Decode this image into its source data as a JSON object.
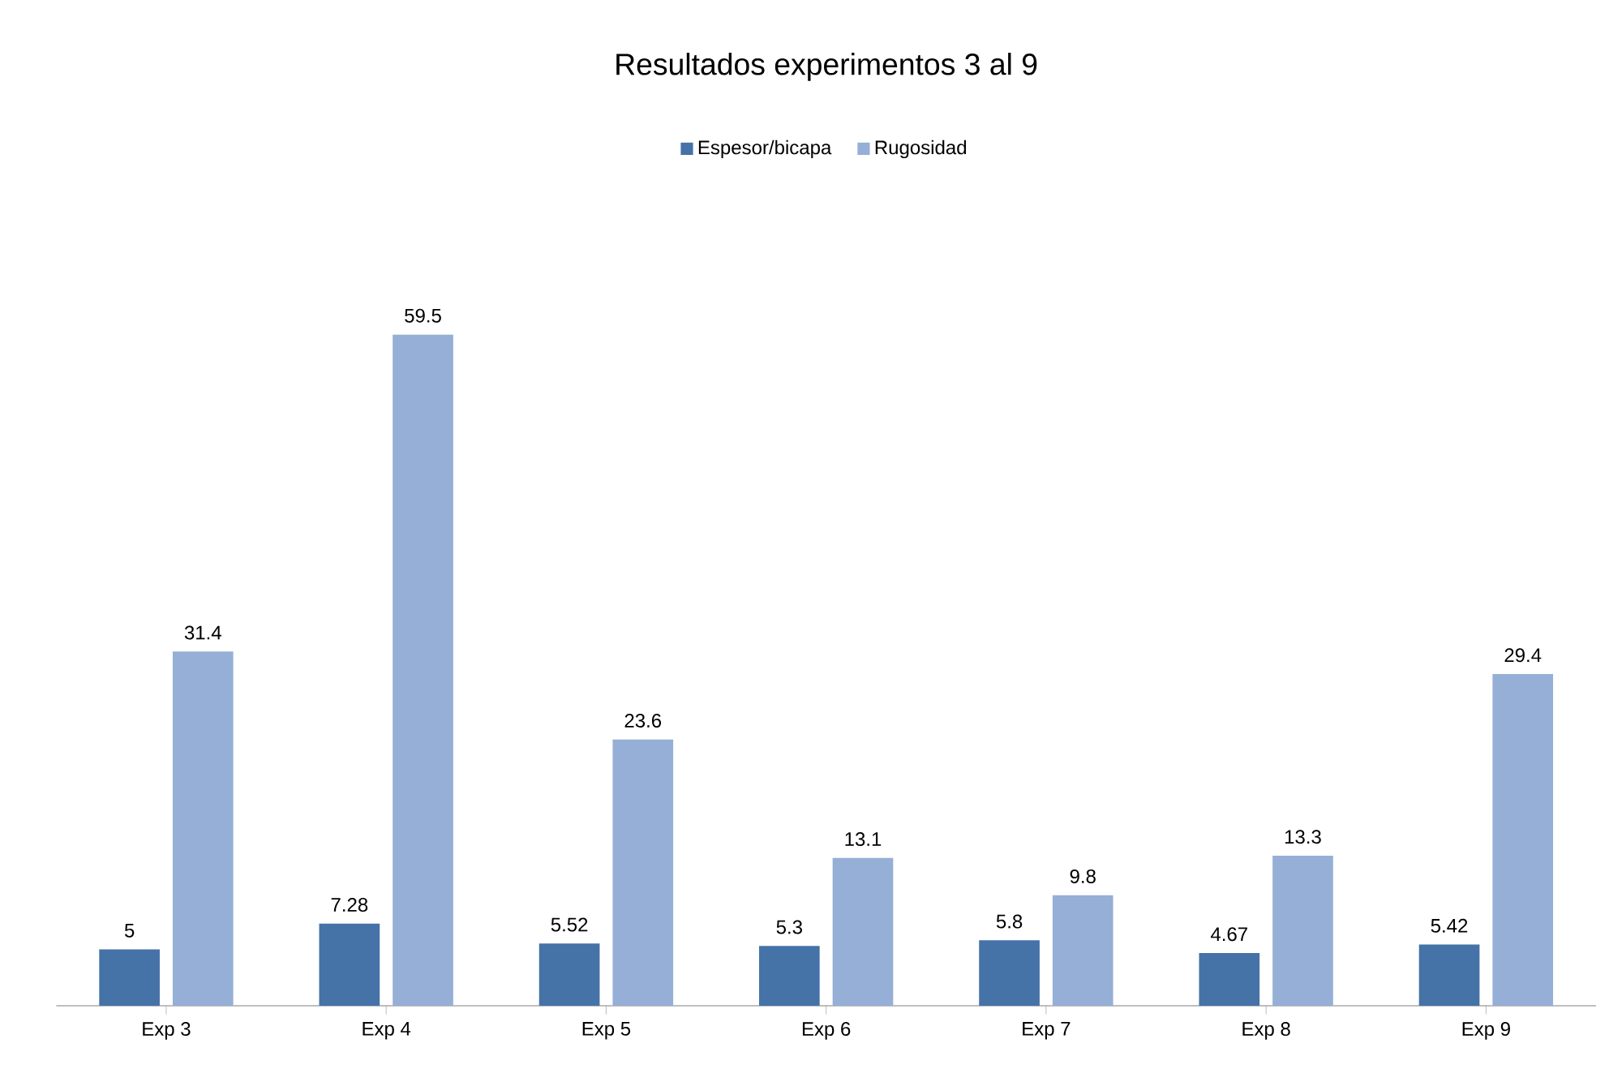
{
  "chart_data": {
    "type": "bar",
    "title": "Resultados experimentos 3 al 9",
    "categories": [
      "Exp 3",
      "Exp 4",
      "Exp 5",
      "Exp 6",
      "Exp 7",
      "Exp 8",
      "Exp 9"
    ],
    "series": [
      {
        "name": "Espesor/bicapa",
        "color": "#4572a7",
        "values": [
          5,
          7.28,
          5.52,
          5.3,
          5.8,
          4.67,
          5.42
        ]
      },
      {
        "name": "Rugosidad",
        "color": "#95afd6",
        "values": [
          31.4,
          59.5,
          23.6,
          13.1,
          9.8,
          13.3,
          29.4
        ]
      }
    ],
    "data_labels": true,
    "legend": "top"
  }
}
